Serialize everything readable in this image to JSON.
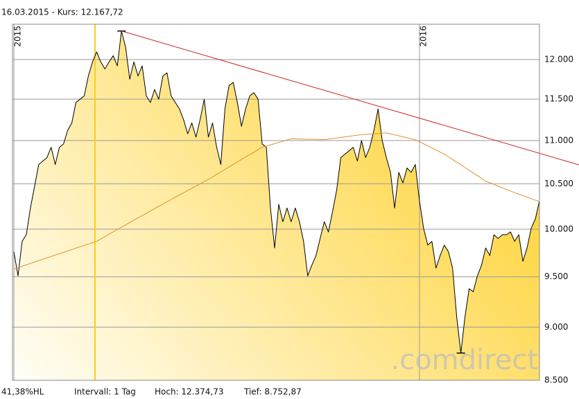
{
  "chart_data": {
    "type": "line",
    "title": "16.03.2015  -  Kurs: 12.167,72",
    "categories": [
      "2015",
      null,
      null,
      null,
      null,
      null,
      null,
      null,
      null,
      null,
      null,
      null,
      null,
      null,
      null,
      null,
      null,
      null,
      null,
      null,
      null,
      null,
      null,
      null,
      null,
      null,
      null,
      null,
      null,
      null,
      null,
      null,
      null,
      null,
      null,
      null,
      null,
      null,
      null,
      null,
      null,
      null,
      null,
      null,
      null,
      null,
      null,
      null,
      null,
      null,
      null,
      null,
      null,
      null,
      null,
      null,
      null,
      null,
      null,
      null,
      null,
      null,
      null,
      null,
      null,
      null,
      null,
      null,
      null,
      null,
      null,
      null,
      null,
      null,
      null,
      null,
      null,
      null,
      null,
      null,
      null,
      null,
      null,
      null,
      null,
      null,
      null,
      null,
      null,
      null,
      null,
      null,
      null,
      null,
      null,
      null,
      null,
      null,
      "2016",
      null,
      null,
      null,
      null,
      null,
      null,
      null,
      null,
      null,
      null,
      null,
      null,
      null,
      null,
      null,
      null,
      null,
      null,
      null,
      null,
      null,
      null,
      null,
      null,
      null,
      null,
      null,
      null,
      null
    ],
    "series": [
      {
        "color": "#000000",
        "area_colors": [
          "#fffef8",
          "#ffd43a"
        ],
        "values": [
          9760,
          9510,
          9870,
          9940,
          10230,
          10470,
          10720,
          10760,
          10800,
          10920,
          10720,
          10920,
          10960,
          11120,
          11210,
          11460,
          11500,
          11540,
          11790,
          11970,
          12100,
          11970,
          11880,
          11970,
          12050,
          11920,
          12374.73,
          12160,
          11750,
          11970,
          11790,
          11920,
          11540,
          11460,
          11620,
          11500,
          11790,
          11830,
          11540,
          11460,
          11380,
          11250,
          11080,
          11210,
          11040,
          11250,
          11500,
          11040,
          11210,
          10920,
          10720,
          11380,
          11670,
          11710,
          11460,
          11170,
          11380,
          11540,
          11580,
          11500,
          10960,
          10920,
          10230,
          9800,
          10270,
          10080,
          10230,
          10080,
          10230,
          10080,
          9870,
          9510,
          9620,
          9720,
          9900,
          10080,
          9970,
          10190,
          10430,
          10800,
          10840,
          10880,
          10920,
          10760,
          11000,
          10800,
          10920,
          11120,
          11380,
          11000,
          10800,
          10630,
          10230,
          10630,
          10510,
          10680,
          10630,
          10720,
          10310,
          10010,
          9830,
          9870,
          9590,
          9720,
          9830,
          9760,
          9590,
          9100,
          8752.87,
          9100,
          9380,
          9350,
          9510,
          9620,
          9800,
          9720,
          9940,
          9900,
          9940,
          9940,
          9970,
          9870,
          9940,
          9660,
          9800,
          10010,
          10110,
          10310
        ]
      },
      {
        "color": "#e0902a",
        "values": [
          9580,
          9595,
          9609,
          9624,
          9638,
          9653,
          9667,
          9682,
          9696,
          9711,
          9725,
          9740,
          9754,
          9769,
          9783,
          9798,
          9812,
          9827,
          9841,
          9856,
          9870,
          9895,
          9920,
          9946,
          9971,
          9996,
          10021,
          10046,
          10072,
          10097,
          10122,
          10147,
          10172,
          10198,
          10223,
          10248,
          10273,
          10298,
          10324,
          10349,
          10374,
          10399,
          10424,
          10450,
          10475,
          10500,
          10525,
          10550,
          10578,
          10607,
          10635,
          10664,
          10692,
          10721,
          10749,
          10778,
          10806,
          10835,
          10863,
          10892,
          10920,
          10934,
          10949,
          10963,
          10977,
          10991,
          11006,
          11020,
          11019,
          11018,
          11016,
          11015,
          11014,
          11013,
          11011,
          11010,
          11017,
          11023,
          11030,
          11037,
          11043,
          11050,
          11057,
          11063,
          11070,
          11073,
          11077,
          11080,
          11083,
          11087,
          11090,
          11079,
          11067,
          11056,
          11044,
          11033,
          11021,
          11010,
          10986,
          10961,
          10937,
          10913,
          10889,
          10864,
          10840,
          10809,
          10778,
          10747,
          10716,
          10685,
          10654,
          10623,
          10592,
          10561,
          10530,
          10511,
          10493,
          10474,
          10456,
          10437,
          10419,
          10400,
          10383,
          10367,
          10350,
          10333,
          10317,
          10300
        ]
      }
    ],
    "trendline": {
      "color": "#cc2222",
      "start": 12374.73,
      "end": 10850
    },
    "ylim": [
      8500,
      12465
    ],
    "log_scale": true,
    "yticks": [
      {
        "value": 8500,
        "label": "8.500"
      },
      {
        "value": 9000,
        "label": "9.000"
      },
      {
        "value": 9500,
        "label": "9.500"
      },
      {
        "value": 10000,
        "label": "10.000"
      },
      {
        "value": 10500,
        "label": "10.500"
      },
      {
        "value": 11000,
        "label": "11.000"
      },
      {
        "value": 11500,
        "label": "11.500"
      },
      {
        "value": 12000,
        "label": "12.000"
      }
    ],
    "grid": true,
    "footer": [
      "41,38%HL",
      "Intervall: 1 Tag",
      "Hoch: 12.374,73",
      "Tief: 8.752,87"
    ],
    "watermark": ".comdirect"
  }
}
